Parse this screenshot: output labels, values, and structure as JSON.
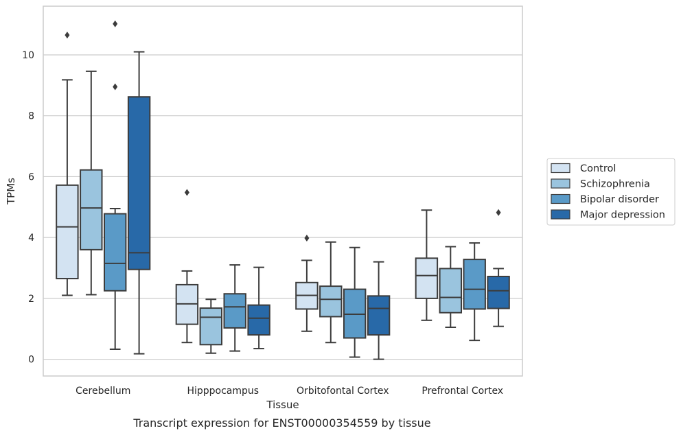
{
  "chart_data": {
    "type": "box",
    "xlabel": "Tissue",
    "ylabel": "TPMs",
    "caption": "Transcript expression for ENST00000354559 by tissue",
    "ylim": [
      -0.55,
      11.6
    ],
    "yticks": [
      0,
      2,
      4,
      6,
      8,
      10
    ],
    "grid": true,
    "legend_position": "right",
    "categories": [
      "Cerebellum",
      "Hipppocampus",
      "Orbitofontal Cortex",
      "Prefrontal Cortex"
    ],
    "series": [
      {
        "name": "Control",
        "color": "#d3e3f2",
        "boxes": [
          {
            "whislo": 2.1,
            "q1": 2.65,
            "med": 4.35,
            "q3": 5.72,
            "whishi": 9.18,
            "fliers": [
              10.65
            ]
          },
          {
            "whislo": 0.55,
            "q1": 1.15,
            "med": 1.82,
            "q3": 2.45,
            "whishi": 2.9,
            "fliers": [
              5.48
            ]
          },
          {
            "whislo": 0.92,
            "q1": 1.65,
            "med": 2.1,
            "q3": 2.52,
            "whishi": 3.25,
            "fliers": [
              3.98
            ]
          },
          {
            "whislo": 1.28,
            "q1": 2.0,
            "med": 2.75,
            "q3": 3.32,
            "whishi": 4.9,
            "fliers": []
          }
        ]
      },
      {
        "name": "Schizophrenia",
        "color": "#9ac4de",
        "boxes": [
          {
            "whislo": 2.12,
            "q1": 3.6,
            "med": 4.97,
            "q3": 6.22,
            "whishi": 9.46,
            "fliers": []
          },
          {
            "whislo": 0.2,
            "q1": 0.48,
            "med": 1.38,
            "q3": 1.68,
            "whishi": 1.97,
            "fliers": []
          },
          {
            "whislo": 0.55,
            "q1": 1.4,
            "med": 1.97,
            "q3": 2.4,
            "whishi": 3.85,
            "fliers": []
          },
          {
            "whislo": 1.05,
            "q1": 1.53,
            "med": 2.03,
            "q3": 2.98,
            "whishi": 3.7,
            "fliers": []
          }
        ]
      },
      {
        "name": "Bipolar disorder",
        "color": "#5a9ac7",
        "boxes": [
          {
            "whislo": 0.33,
            "q1": 2.25,
            "med": 3.15,
            "q3": 4.78,
            "whishi": 4.95,
            "fliers": [
              8.95,
              11.02
            ]
          },
          {
            "whislo": 0.27,
            "q1": 1.03,
            "med": 1.72,
            "q3": 2.15,
            "whishi": 3.1,
            "fliers": []
          },
          {
            "whislo": 0.07,
            "q1": 0.7,
            "med": 1.48,
            "q3": 2.3,
            "whishi": 3.67,
            "fliers": []
          },
          {
            "whislo": 0.62,
            "q1": 1.65,
            "med": 2.3,
            "q3": 3.28,
            "whishi": 3.82,
            "fliers": []
          }
        ]
      },
      {
        "name": "Major depression",
        "color": "#2869a8",
        "boxes": [
          {
            "whislo": 0.18,
            "q1": 2.95,
            "med": 3.5,
            "q3": 8.62,
            "whishi": 10.1,
            "fliers": []
          },
          {
            "whislo": 0.35,
            "q1": 0.8,
            "med": 1.35,
            "q3": 1.78,
            "whishi": 3.02,
            "fliers": []
          },
          {
            "whislo": 0.0,
            "q1": 0.8,
            "med": 1.67,
            "q3": 2.08,
            "whishi": 3.2,
            "fliers": []
          },
          {
            "whislo": 1.08,
            "q1": 1.67,
            "med": 2.25,
            "q3": 2.72,
            "whishi": 2.98,
            "fliers": [
              4.82
            ]
          }
        ]
      }
    ]
  }
}
